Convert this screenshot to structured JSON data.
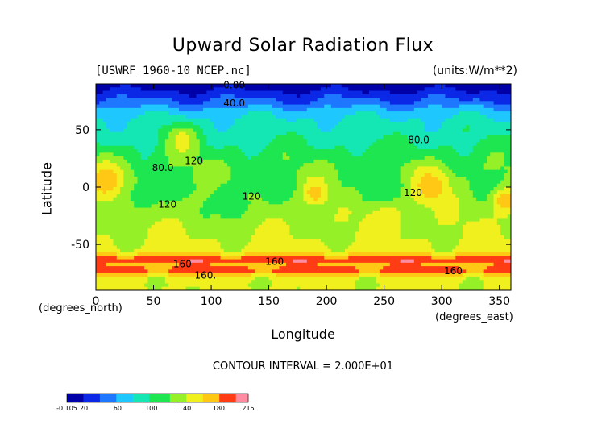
{
  "chart_data": {
    "type": "heatmap",
    "title": "Upward Solar Radiation Flux",
    "source_label": "[USWRF_1960-10_NCEP.nc]",
    "units_label": "(units:W/m**2)",
    "xlabel": "Longitude",
    "ylabel": "Latitude",
    "x_unit_label": "(degrees_east)",
    "y_unit_label": "(degrees_north)",
    "xlim": [
      0,
      360
    ],
    "ylim": [
      -90,
      90
    ],
    "x_ticks": [
      0,
      50,
      100,
      150,
      200,
      250,
      300,
      350
    ],
    "y_ticks": [
      -50,
      0,
      50
    ],
    "contour_interval_text": "CONTOUR INTERVAL = 2.000E+01",
    "colorbar_tick_labels": [
      "-0.105",
      "20",
      "60",
      "100",
      "140",
      "180",
      "215"
    ],
    "colorbar_range": [
      -0.105,
      215
    ],
    "contour_labels": [
      {
        "text": "0.00",
        "lon": 120,
        "lat": 89
      },
      {
        "text": "40.0",
        "lon": 120,
        "lat": 73
      },
      {
        "text": "80.0",
        "lon": 280,
        "lat": 41
      },
      {
        "text": "80.0",
        "lon": 58,
        "lat": 17
      },
      {
        "text": "120",
        "lon": 85,
        "lat": 23
      },
      {
        "text": "120",
        "lon": 135,
        "lat": -8
      },
      {
        "text": "120",
        "lon": 62,
        "lat": -15
      },
      {
        "text": "120",
        "lon": 275,
        "lat": -5
      },
      {
        "text": "160",
        "lon": 75,
        "lat": -67
      },
      {
        "text": "160",
        "lon": 155,
        "lat": -65
      },
      {
        "text": "160.",
        "lon": 95,
        "lat": -77
      },
      {
        "text": "160",
        "lon": 310,
        "lat": -73
      }
    ],
    "latitude_profile": [
      {
        "lat": 90,
        "value": 5
      },
      {
        "lat": 82,
        "value": 25
      },
      {
        "lat": 74,
        "value": 45
      },
      {
        "lat": 66,
        "value": 70
      },
      {
        "lat": 58,
        "value": 85
      },
      {
        "lat": 48,
        "value": 92
      },
      {
        "lat": 38,
        "value": 100
      },
      {
        "lat": 28,
        "value": 110
      },
      {
        "lat": 18,
        "value": 118
      },
      {
        "lat": 8,
        "value": 122
      },
      {
        "lat": 0,
        "value": 118
      },
      {
        "lat": -10,
        "value": 125
      },
      {
        "lat": -22,
        "value": 132
      },
      {
        "lat": -34,
        "value": 138
      },
      {
        "lat": -46,
        "value": 142
      },
      {
        "lat": -56,
        "value": 150
      },
      {
        "lat": -63,
        "value": 195
      },
      {
        "lat": -68,
        "value": 175
      },
      {
        "lat": -73,
        "value": 192
      },
      {
        "lat": -79,
        "value": 150
      },
      {
        "lat": -86,
        "value": 145
      }
    ],
    "regional_anomalies": [
      {
        "lon": 8,
        "lat": 5,
        "radius_deg": 12,
        "value": 175
      },
      {
        "lon": 190,
        "lat": -5,
        "radius_deg": 8,
        "value": 170
      },
      {
        "lon": 290,
        "lat": 0,
        "radius_deg": 12,
        "value": 175
      },
      {
        "lon": 355,
        "lat": -12,
        "radius_deg": 8,
        "value": 175
      },
      {
        "lon": 250,
        "lat": -25,
        "radius_deg": 10,
        "value": 165
      },
      {
        "lon": 75,
        "lat": 40,
        "radius_deg": 10,
        "value": 150
      },
      {
        "lon": 120,
        "lat": -15,
        "radius_deg": 12,
        "value": 105
      },
      {
        "lon": 245,
        "lat": 0,
        "radius_deg": 14,
        "value": 110
      },
      {
        "lon": 40,
        "lat": -10,
        "radius_deg": 10,
        "value": 110
      },
      {
        "lon": 150,
        "lat": 5,
        "radius_deg": 10,
        "value": 115
      }
    ]
  }
}
